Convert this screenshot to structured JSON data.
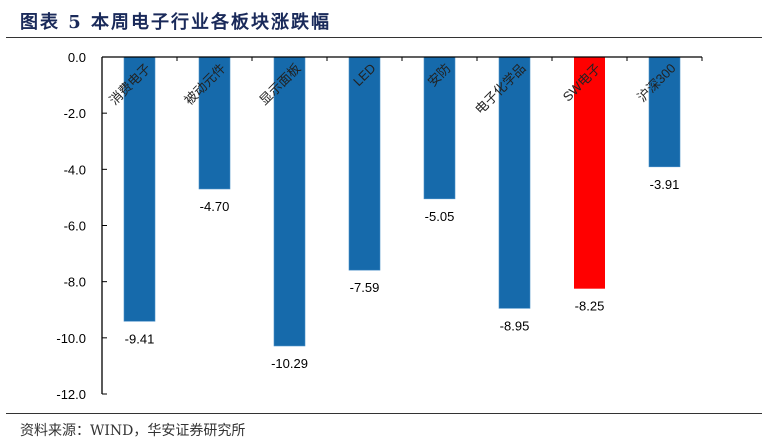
{
  "header": {
    "title": "图表 5  本周电子行业各板块涨跌幅"
  },
  "footer": {
    "source": "资料来源：WIND，华安证券研究所"
  },
  "colors": {
    "bar_default": "#166aab",
    "bar_highlight": "#ff0000",
    "axis": "#000000",
    "title": "#1a2a5a"
  },
  "chart_data": {
    "type": "bar",
    "title": "本周电子行业各板块涨跌幅",
    "xlabel": "",
    "ylabel": "",
    "categories": [
      "消费电子",
      "被动元件",
      "显示面板",
      "LED",
      "安防",
      "电子化学品",
      "SW电子",
      "沪深300"
    ],
    "values": [
      -9.41,
      -4.7,
      -10.29,
      -7.59,
      -5.05,
      -8.95,
      -8.25,
      -3.91
    ],
    "value_labels": [
      "-9.41",
      "-4.70",
      "-10.29",
      "-7.59",
      "-5.05",
      "-8.95",
      "-8.25",
      "-3.91"
    ],
    "highlight_index": 6,
    "ylim": [
      -12.0,
      0.0
    ],
    "yticks": [
      0.0,
      -2.0,
      -4.0,
      -6.0,
      -8.0,
      -10.0,
      -12.0
    ],
    "ytick_labels": [
      "0.0",
      "-2.0",
      "-4.0",
      "-6.0",
      "-8.0",
      "-10.0",
      "-12.0"
    ],
    "x_axis_position": "top",
    "category_label_rotation": -45,
    "grid": false,
    "legend": null
  }
}
